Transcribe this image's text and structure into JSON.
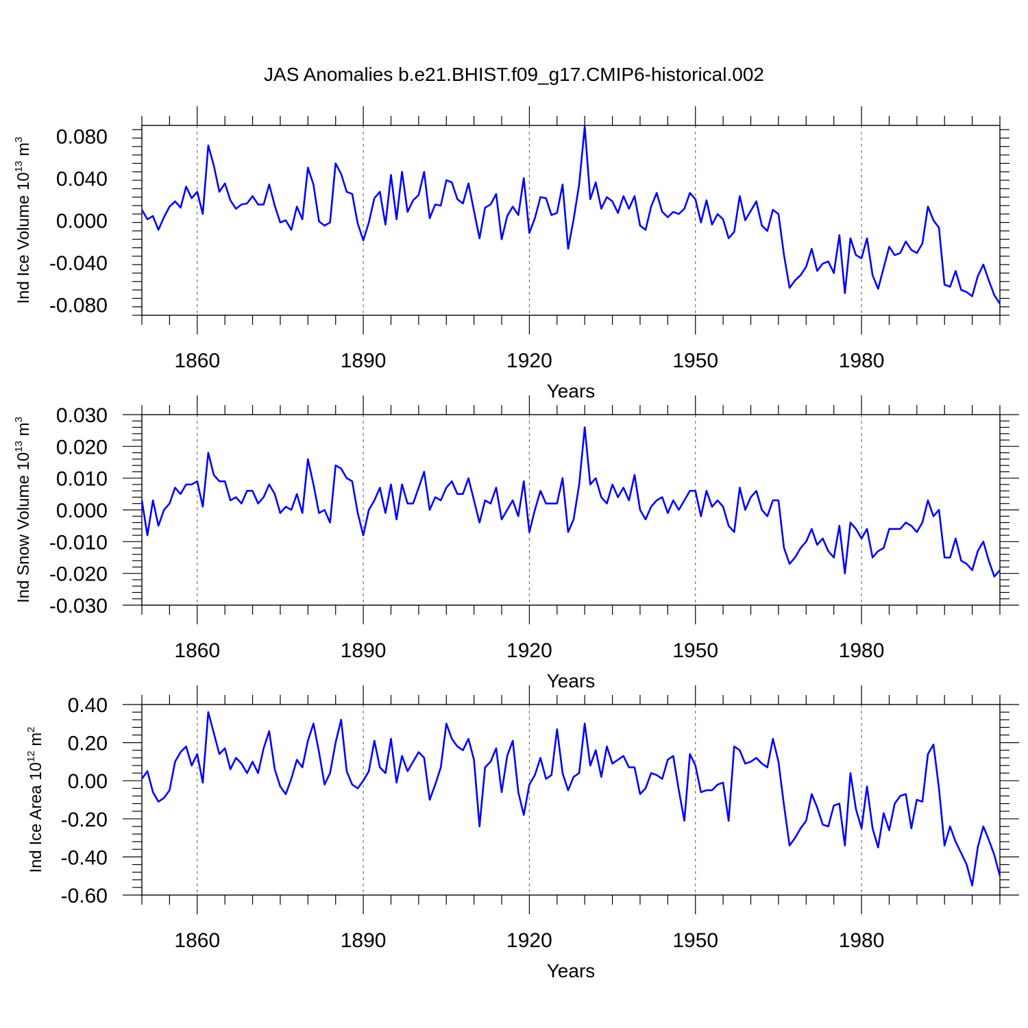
{
  "title": "JAS Anomalies b.e21.BHIST.f09_g17.CMIP6-historical.002",
  "colors": {
    "line": "#0000ff",
    "axis": "#000000",
    "grid": "#555555"
  },
  "chart_data": [
    {
      "type": "line",
      "ylabel": "Ind Ice Volume 10",
      "ylabel_exp": "13",
      "ylabel_unit": " m",
      "ylabel_unit_exp": "3",
      "xlabel": "Years",
      "x_start": 1850,
      "x_step": 1,
      "xlim": [
        1850,
        2005
      ],
      "ylim": [
        -0.09,
        0.09
      ],
      "xticks": [
        1860,
        1890,
        1920,
        1950,
        1980
      ],
      "xtick_labels": [
        "1860",
        "1890",
        "1920",
        "1950",
        "1980"
      ],
      "yticks": [
        0.08,
        0.04,
        0.0,
        -0.04,
        -0.08
      ],
      "ytick_labels": [
        "0.080",
        "0.040",
        "0.000",
        "-0.040",
        "-0.080"
      ],
      "grid": "vertical dashed at major x ticks",
      "values": [
        0.01,
        0.001,
        0.004,
        -0.009,
        0.003,
        0.013,
        0.018,
        0.012,
        0.032,
        0.021,
        0.027,
        0.006,
        0.071,
        0.052,
        0.027,
        0.035,
        0.019,
        0.011,
        0.015,
        0.016,
        0.023,
        0.015,
        0.015,
        0.034,
        0.014,
        -0.002,
        0.0,
        -0.009,
        0.013,
        0.001,
        0.05,
        0.034,
        -0.001,
        -0.005,
        -0.002,
        0.054,
        0.044,
        0.027,
        0.025,
        -0.003,
        -0.019,
        -0.002,
        0.021,
        0.027,
        -0.004,
        0.043,
        0.001,
        0.046,
        0.008,
        0.019,
        0.024,
        0.046,
        0.002,
        0.015,
        0.014,
        0.038,
        0.036,
        0.02,
        0.016,
        0.035,
        0.009,
        -0.017,
        0.012,
        0.015,
        0.025,
        -0.018,
        0.004,
        0.013,
        0.005,
        0.04,
        -0.012,
        0.002,
        0.022,
        0.021,
        0.005,
        0.007,
        0.034,
        -0.027,
        0.001,
        0.034,
        0.089,
        0.02,
        0.036,
        0.011,
        0.022,
        0.018,
        0.007,
        0.023,
        0.011,
        0.023,
        -0.005,
        -0.009,
        0.013,
        0.026,
        0.008,
        0.003,
        0.008,
        0.006,
        0.011,
        0.026,
        0.02,
        -0.002,
        0.019,
        -0.004,
        0.006,
        0.001,
        -0.017,
        -0.011,
        0.023,
        0.0,
        0.009,
        0.018,
        -0.005,
        -0.01,
        0.01,
        0.006,
        -0.033,
        -0.064,
        -0.057,
        -0.052,
        -0.044,
        -0.027,
        -0.048,
        -0.041,
        -0.039,
        -0.05,
        -0.014,
        -0.069,
        -0.017,
        -0.033,
        -0.036,
        -0.017,
        -0.052,
        -0.065,
        -0.045,
        -0.025,
        -0.033,
        -0.031,
        -0.02,
        -0.028,
        -0.031,
        -0.022,
        0.013,
        0.0,
        -0.007,
        -0.061,
        -0.063,
        -0.048,
        -0.066,
        -0.068,
        -0.072,
        -0.053,
        -0.042,
        -0.057,
        -0.071,
        -0.079
      ]
    },
    {
      "type": "line",
      "ylabel": "Ind Snow Volume 10",
      "ylabel_exp": "13",
      "ylabel_unit": " m",
      "ylabel_unit_exp": "3",
      "xlabel": "Years",
      "x_start": 1850,
      "x_step": 1,
      "xlim": [
        1850,
        2005
      ],
      "ylim": [
        -0.03,
        0.03
      ],
      "xticks": [
        1860,
        1890,
        1920,
        1950,
        1980
      ],
      "xtick_labels": [
        "1860",
        "1890",
        "1920",
        "1950",
        "1980"
      ],
      "yticks": [
        0.03,
        0.02,
        0.01,
        0.0,
        -0.01,
        -0.02,
        -0.03
      ],
      "ytick_labels": [
        "0.030",
        "0.020",
        "0.010",
        "0.000",
        "-0.010",
        "-0.020",
        "-0.030"
      ],
      "grid": "vertical dashed at major x ticks",
      "values": [
        0.003,
        -0.008,
        0.003,
        -0.005,
        0.0,
        0.002,
        0.007,
        0.005,
        0.008,
        0.008,
        0.009,
        0.001,
        0.018,
        0.011,
        0.009,
        0.009,
        0.003,
        0.004,
        0.002,
        0.006,
        0.006,
        0.002,
        0.004,
        0.008,
        0.005,
        -0.001,
        0.001,
        0.0,
        0.005,
        -0.001,
        0.016,
        0.008,
        -0.001,
        0.0,
        -0.004,
        0.014,
        0.013,
        0.01,
        0.009,
        -0.001,
        -0.008,
        0.0,
        0.003,
        0.007,
        -0.001,
        0.008,
        -0.003,
        0.008,
        0.002,
        0.002,
        0.007,
        0.012,
        0.0,
        0.004,
        0.003,
        0.007,
        0.009,
        0.005,
        0.005,
        0.01,
        0.003,
        -0.004,
        0.003,
        0.002,
        0.007,
        -0.003,
        0.0,
        0.003,
        -0.002,
        0.009,
        -0.007,
        0.0,
        0.006,
        0.002,
        0.002,
        0.002,
        0.01,
        -0.007,
        -0.003,
        0.008,
        0.026,
        0.008,
        0.01,
        0.004,
        0.002,
        0.008,
        0.004,
        0.007,
        0.003,
        0.011,
        0.0,
        -0.003,
        0.001,
        0.003,
        0.004,
        -0.001,
        0.003,
        0.0,
        0.003,
        0.006,
        0.006,
        -0.002,
        0.006,
        0.001,
        0.003,
        0.001,
        -0.005,
        -0.007,
        0.007,
        0.0,
        0.004,
        0.006,
        0.0,
        -0.002,
        0.003,
        0.003,
        -0.012,
        -0.017,
        -0.015,
        -0.012,
        -0.01,
        -0.006,
        -0.011,
        -0.009,
        -0.013,
        -0.015,
        -0.005,
        -0.02,
        -0.004,
        -0.006,
        -0.009,
        -0.006,
        -0.015,
        -0.013,
        -0.012,
        -0.006,
        -0.006,
        -0.006,
        -0.004,
        -0.005,
        -0.007,
        -0.004,
        0.003,
        -0.002,
        0.0,
        -0.015,
        -0.015,
        -0.009,
        -0.016,
        -0.017,
        -0.019,
        -0.013,
        -0.01,
        -0.016,
        -0.021,
        -0.019
      ]
    },
    {
      "type": "line",
      "ylabel": "Ind Ice Area 10",
      "ylabel_exp": "12",
      "ylabel_unit": " m",
      "ylabel_unit_exp": "2",
      "xlabel": "Years",
      "x_start": 1850,
      "x_step": 1,
      "xlim": [
        1850,
        2005
      ],
      "ylim": [
        -0.6,
        0.4
      ],
      "xticks": [
        1860,
        1890,
        1920,
        1950,
        1980
      ],
      "xtick_labels": [
        "1860",
        "1890",
        "1920",
        "1950",
        "1980"
      ],
      "yticks": [
        0.4,
        0.2,
        0.0,
        -0.2,
        -0.4,
        -0.6
      ],
      "ytick_labels": [
        "0.40",
        "0.20",
        "0.00",
        "-0.20",
        "-0.40",
        "-0.60"
      ],
      "grid": "vertical dashed at major x ticks",
      "values": [
        0.01,
        0.05,
        -0.06,
        -0.11,
        -0.09,
        -0.05,
        0.1,
        0.15,
        0.18,
        0.08,
        0.14,
        -0.01,
        0.36,
        0.25,
        0.14,
        0.17,
        0.06,
        0.12,
        0.09,
        0.04,
        0.1,
        0.04,
        0.17,
        0.26,
        0.06,
        -0.03,
        -0.07,
        0.01,
        0.11,
        0.07,
        0.21,
        0.3,
        0.15,
        -0.02,
        0.04,
        0.2,
        0.32,
        0.05,
        -0.02,
        -0.04,
        0.0,
        0.05,
        0.21,
        0.07,
        0.04,
        0.22,
        -0.01,
        0.13,
        0.05,
        0.1,
        0.15,
        0.12,
        -0.1,
        -0.02,
        0.07,
        0.3,
        0.22,
        0.18,
        0.16,
        0.22,
        0.11,
        -0.24,
        0.07,
        0.1,
        0.17,
        -0.06,
        0.13,
        0.21,
        -0.06,
        -0.18,
        -0.02,
        0.03,
        0.12,
        0.01,
        0.03,
        0.27,
        0.04,
        -0.05,
        0.02,
        0.04,
        0.3,
        0.08,
        0.16,
        0.02,
        0.18,
        0.09,
        0.11,
        0.13,
        0.07,
        0.07,
        -0.07,
        -0.04,
        0.04,
        0.03,
        0.01,
        0.11,
        0.13,
        -0.05,
        -0.21,
        0.14,
        0.08,
        -0.06,
        -0.05,
        -0.05,
        -0.02,
        -0.01,
        -0.21,
        0.18,
        0.16,
        0.09,
        0.1,
        0.12,
        0.09,
        0.07,
        0.22,
        0.1,
        -0.13,
        -0.34,
        -0.3,
        -0.25,
        -0.21,
        -0.07,
        -0.14,
        -0.23,
        -0.24,
        -0.13,
        -0.12,
        -0.34,
        0.04,
        -0.15,
        -0.25,
        -0.03,
        -0.25,
        -0.35,
        -0.17,
        -0.26,
        -0.12,
        -0.08,
        -0.07,
        -0.25,
        -0.1,
        -0.11,
        0.14,
        0.19,
        -0.04,
        -0.34,
        -0.24,
        -0.32,
        -0.38,
        -0.44,
        -0.55,
        -0.35,
        -0.24,
        -0.31,
        -0.39,
        -0.5
      ]
    }
  ]
}
